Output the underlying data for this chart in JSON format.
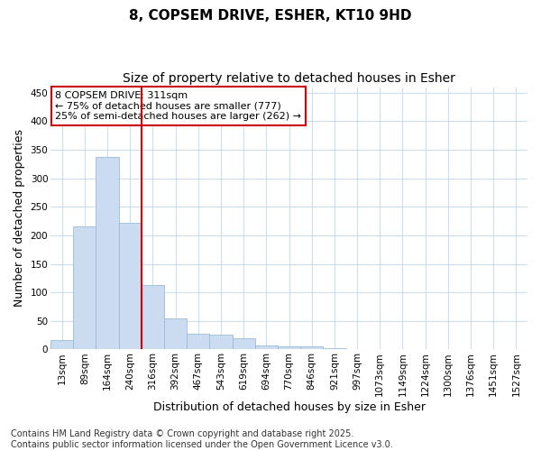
{
  "title_line1": "8, COPSEM DRIVE, ESHER, KT10 9HD",
  "title_line2": "Size of property relative to detached houses in Esher",
  "xlabel": "Distribution of detached houses by size in Esher",
  "ylabel": "Number of detached properties",
  "categories": [
    "13sqm",
    "89sqm",
    "164sqm",
    "240sqm",
    "316sqm",
    "392sqm",
    "467sqm",
    "543sqm",
    "619sqm",
    "694sqm",
    "770sqm",
    "846sqm",
    "921sqm",
    "997sqm",
    "1073sqm",
    "1149sqm",
    "1224sqm",
    "1300sqm",
    "1376sqm",
    "1451sqm",
    "1527sqm"
  ],
  "values": [
    16,
    216,
    338,
    222,
    113,
    55,
    27,
    26,
    20,
    7,
    6,
    5,
    3,
    1,
    1,
    0,
    0,
    0,
    1,
    0,
    1
  ],
  "bar_color": "#ccdcf0",
  "bar_edge_color": "#99bbdd",
  "vline_x": 3.5,
  "vline_color": "#cc0000",
  "annotation_text": "8 COPSEM DRIVE: 311sqm\n← 75% of detached houses are smaller (777)\n25% of semi-detached houses are larger (262) →",
  "annotation_box_color": "#ffffff",
  "annotation_box_edge_color": "#cc0000",
  "ylim": [
    0,
    460
  ],
  "yticks": [
    0,
    50,
    100,
    150,
    200,
    250,
    300,
    350,
    400,
    450
  ],
  "footer": "Contains HM Land Registry data © Crown copyright and database right 2025.\nContains public sector information licensed under the Open Government Licence v3.0.",
  "bg_color": "#ffffff",
  "plot_bg_color": "#ffffff",
  "grid_color": "#ccddee",
  "title_fontsize": 11,
  "subtitle_fontsize": 10,
  "tick_fontsize": 7.5,
  "label_fontsize": 9,
  "footer_fontsize": 7
}
